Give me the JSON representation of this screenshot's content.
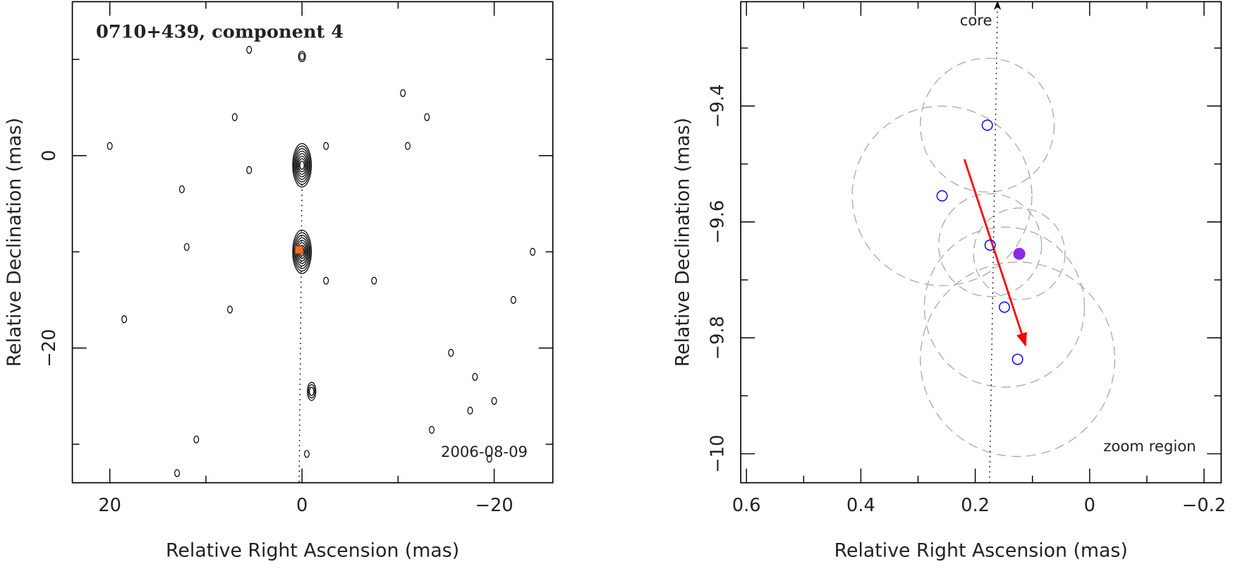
{
  "chart_data": [
    {
      "type": "contour",
      "title": "0710+439, component 4",
      "annotation": "2006-08-09",
      "x_label": "Relative Right Ascension (mas)",
      "y_label": "Relative Declination (mas)",
      "xlim": [
        23.9,
        -26.1
      ],
      "ylim": [
        -34,
        16
      ],
      "xticks": [
        20,
        0,
        {
          "value": -20,
          "label": "−20"
        }
      ],
      "yticks": [
        {
          "value": -20,
          "label": "−20"
        },
        0
      ],
      "minor_xticks": [
        10,
        -10
      ],
      "minor_yticks": [
        10,
        -10,
        -30
      ],
      "color": "#000000",
      "features": {
        "x": [
          0,
          0,
          -1,
          0,
          5.5,
          7,
          -10.5,
          -13,
          20,
          -11,
          -2.5,
          5.5,
          12.5,
          12,
          -24,
          -2.5,
          -7.5,
          -22,
          7.5,
          18.5,
          -15.5,
          -18,
          -17.5,
          -20,
          11,
          -13.5,
          -19.5,
          13,
          -0.5
        ],
        "y": [
          -1,
          -10,
          -24.5,
          10.3,
          11,
          4,
          6.5,
          4,
          1,
          1,
          1,
          -1.5,
          -3.5,
          -9.5,
          -10,
          -13,
          -13,
          -15,
          -16,
          -17,
          -20.5,
          -23,
          -26.5,
          -25.5,
          -29.5,
          -28.5,
          -31.5,
          -33,
          -31
        ],
        "levels": [
          8,
          8,
          3,
          2,
          1,
          1,
          1,
          1,
          1,
          1,
          1,
          1,
          1,
          1,
          1,
          1,
          1,
          1,
          1,
          1,
          1,
          1,
          1,
          1,
          1,
          1,
          1,
          1,
          1
        ]
      },
      "marker": {
        "x": 0.3,
        "y": -9.8,
        "color": "#e8731a"
      },
      "jet_axis": {
        "x": [
          0,
          0.3
        ],
        "y": [
          -3,
          -34
        ]
      }
    },
    {
      "type": "scatter",
      "annotation": "zoom region",
      "core_label": "core",
      "x_label": "Relative Right Ascension (mas)",
      "y_label": "Relative Declination (mas)",
      "xlim": [
        0.61,
        -0.23
      ],
      "ylim": [
        -10.05,
        -9.22
      ],
      "xticks": [
        0.6,
        0.4,
        0.2,
        0,
        {
          "value": -0.2,
          "label": "−0.2"
        }
      ],
      "yticks": [
        {
          "value": -10,
          "label": "−10"
        },
        {
          "value": -9.8,
          "label": "−9.8"
        },
        {
          "value": -9.6,
          "label": "−9.6"
        },
        {
          "value": -9.4,
          "label": "−9.4"
        }
      ],
      "minor_xticks": [
        0.5,
        0.3,
        0.1,
        -0.1
      ],
      "minor_yticks": [
        -9.9,
        -9.7,
        -9.5,
        -9.3
      ],
      "error_color": "#aaaaaa",
      "series": [
        {
          "color": "#0000ff",
          "filled": false,
          "x": [
            0.179,
            0.258,
            0.174,
            0.149,
            0.126
          ],
          "values": [
            -9.433,
            -9.555,
            -9.64,
            -9.747,
            -9.837
          ],
          "errors": [
            0.117,
            0.157,
            0.09,
            0.14,
            0.17
          ]
        },
        {
          "color": "#8a2be2",
          "filled": true,
          "x": [
            0.123
          ],
          "values": [
            -9.655
          ],
          "errors": [
            0.08
          ]
        }
      ],
      "core_line": {
        "x": [
          0.175,
          0.161
        ],
        "y": [
          -10.05,
          -9.22
        ]
      },
      "motion": {
        "color": "#ff0000",
        "x": [
          0.219,
          0.112
        ],
        "y": [
          -9.492,
          -9.813
        ]
      }
    }
  ]
}
